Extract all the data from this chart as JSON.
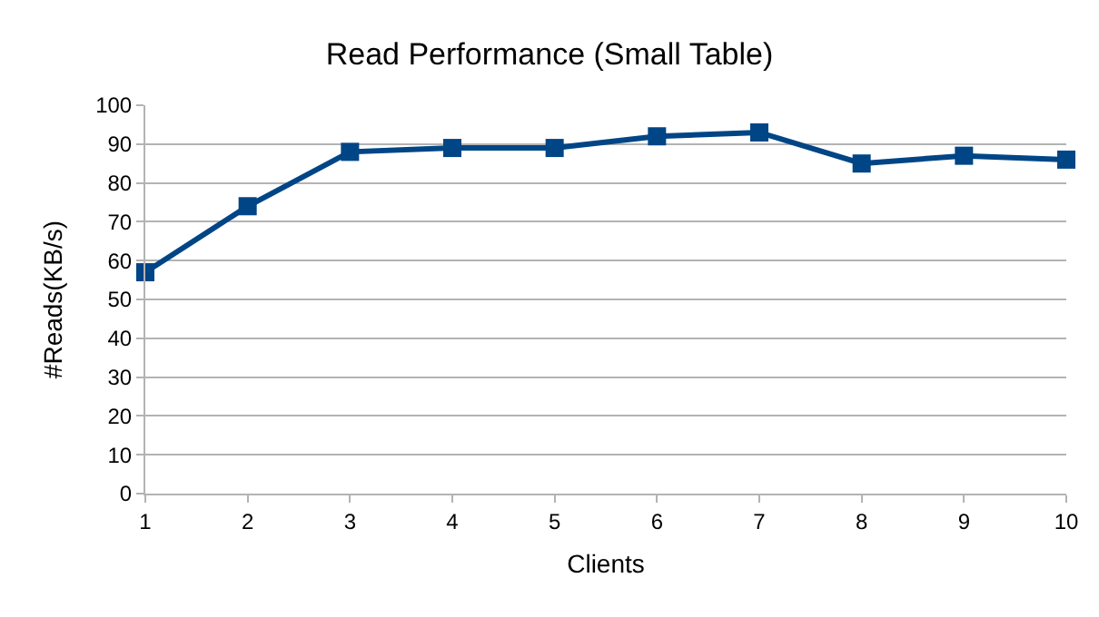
{
  "chart_data": {
    "type": "line",
    "title": "Read Performance (Small Table)",
    "xlabel": "Clients",
    "ylabel": "#Reads(KB/s)",
    "x": [
      1,
      2,
      3,
      4,
      5,
      6,
      7,
      8,
      9,
      10
    ],
    "series": [
      {
        "color": "#004586",
        "values": [
          57,
          74,
          88,
          89,
          89,
          92,
          93,
          85,
          87,
          86
        ]
      }
    ],
    "xlim": [
      1,
      10
    ],
    "xticks": [
      1,
      2,
      3,
      4,
      5,
      6,
      7,
      8,
      9,
      10
    ],
    "ylim": [
      0,
      100
    ],
    "yticks": [
      0,
      10,
      20,
      30,
      40,
      50,
      60,
      70,
      80,
      90,
      100
    ],
    "grid": "y",
    "marker": "square",
    "line_style": "solid"
  }
}
